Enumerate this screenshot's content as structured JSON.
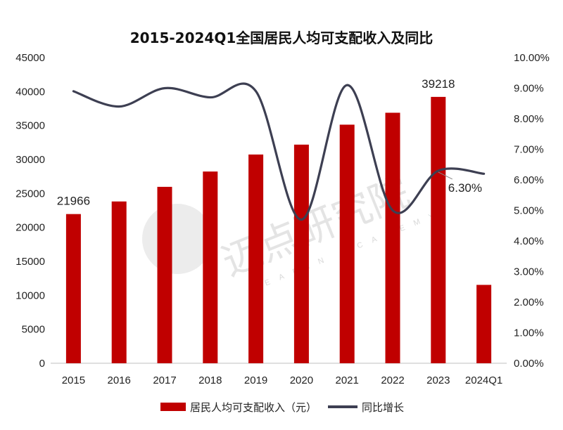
{
  "chart_data": {
    "type": "bar+line",
    "title": "2015-2024Q1全国居民人均可支配收入及同比",
    "categories": [
      "2015",
      "2016",
      "2017",
      "2018",
      "2019",
      "2020",
      "2021",
      "2022",
      "2023",
      "2024Q1"
    ],
    "series": [
      {
        "name": "居民人均可支配收入（元）",
        "type": "bar",
        "axis": "left",
        "color": "#c00000",
        "values": [
          21966,
          23821,
          25974,
          28228,
          30733,
          32189,
          35128,
          36883,
          39218,
          11539
        ]
      },
      {
        "name": "同比增长",
        "type": "line",
        "axis": "right",
        "color": "#3d3f52",
        "values": [
          8.9,
          8.4,
          9.0,
          8.7,
          8.9,
          4.7,
          9.1,
          5.0,
          6.3,
          6.2
        ]
      }
    ],
    "y_left": {
      "min": 0,
      "max": 45000,
      "step": 5000
    },
    "y_right": {
      "min": 0,
      "max": 10,
      "step": 1,
      "format": "percent_2dp"
    },
    "y_left_ticks": [
      "0",
      "5000",
      "10000",
      "15000",
      "20000",
      "25000",
      "30000",
      "35000",
      "40000",
      "45000"
    ],
    "y_right_ticks": [
      "0.00%",
      "1.00%",
      "2.00%",
      "3.00%",
      "4.00%",
      "5.00%",
      "6.00%",
      "7.00%",
      "8.00%",
      "9.00%",
      "10.00%"
    ],
    "annotations": [
      {
        "series": 0,
        "index": 0,
        "text": "21966"
      },
      {
        "series": 0,
        "index": 8,
        "text": "39218"
      },
      {
        "series": 1,
        "index": 8,
        "text": "6.30%"
      }
    ],
    "legend": {
      "position": "bottom"
    },
    "grid": false
  },
  "watermark": {
    "text": "迈点研究院",
    "sub": "MEADIN ACADEMY"
  }
}
